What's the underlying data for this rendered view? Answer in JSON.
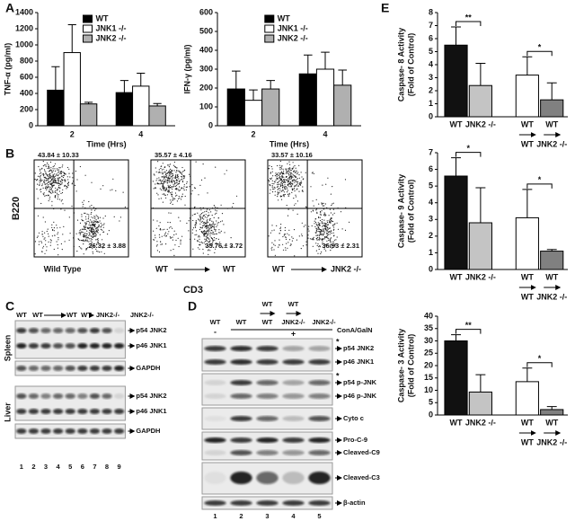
{
  "chart_data": [
    {
      "type": "bar",
      "ylabel": "TNF-α (pg/ml)",
      "xlabel": "Time (Hrs)",
      "categories": [
        "2",
        "4"
      ],
      "series": [
        {
          "name": "WT",
          "color": "#000000",
          "values": [
            440,
            410
          ],
          "errors": [
            290,
            150
          ]
        },
        {
          "name": "JNK1 -/-",
          "color": "#ffffff",
          "values": [
            905,
            490
          ],
          "errors": [
            345,
            160
          ]
        },
        {
          "name": "JNK2 -/-",
          "color": "#b0b0b0",
          "values": [
            270,
            245
          ],
          "errors": [
            20,
            30
          ]
        }
      ],
      "ylim": [
        0,
        1400
      ],
      "yticks": [
        0,
        200,
        400,
        600,
        800,
        1000,
        1200,
        1400
      ],
      "legend": "top-center"
    },
    {
      "type": "bar",
      "ylabel": "IFN-γ (pg/ml)",
      "xlabel": "Time (Hrs)",
      "categories": [
        "2",
        "4"
      ],
      "series": [
        {
          "name": "WT",
          "color": "#000000",
          "values": [
            195,
            275
          ],
          "errors": [
            95,
            100
          ]
        },
        {
          "name": "JNK1 -/-",
          "color": "#ffffff",
          "values": [
            135,
            300
          ],
          "errors": [
            55,
            90
          ]
        },
        {
          "name": "JNK2 -/-",
          "color": "#b0b0b0",
          "values": [
            195,
            215
          ],
          "errors": [
            45,
            80
          ]
        }
      ],
      "ylim": [
        0,
        600
      ],
      "yticks": [
        0,
        100,
        200,
        300,
        400,
        500,
        600
      ],
      "legend": "top-center"
    },
    {
      "type": "bar",
      "ylabel": [
        "Caspase- 8 Activity",
        "(Fold of Control)"
      ],
      "categories": [
        [
          "WT"
        ],
        [
          "JNK2 -/-"
        ],
        [
          "WT",
          "WT"
        ],
        [
          "WT",
          "JNK2 -/-"
        ]
      ],
      "values": [
        5.5,
        2.4,
        3.2,
        1.3
      ],
      "errors": [
        1.4,
        1.7,
        1.4,
        1.3
      ],
      "colors": [
        "#111111",
        "#c4c4c4",
        "#ffffff",
        "#808080"
      ],
      "ylim": [
        0,
        8
      ],
      "yticks": [
        0,
        1,
        2,
        3,
        4,
        5,
        6,
        7,
        8
      ],
      "significance": [
        "**",
        "*"
      ]
    },
    {
      "type": "bar",
      "ylabel": [
        "Caspase- 9 Activity",
        "(Fold of Control)"
      ],
      "categories": [
        [
          "WT"
        ],
        [
          "JNK2 -/-"
        ],
        [
          "WT",
          "WT"
        ],
        [
          "WT",
          "JNK2 -/-"
        ]
      ],
      "values": [
        5.6,
        2.8,
        3.1,
        1.1
      ],
      "errors": [
        1.1,
        2.1,
        1.7,
        0.1
      ],
      "colors": [
        "#111111",
        "#c4c4c4",
        "#ffffff",
        "#808080"
      ],
      "ylim": [
        0,
        7
      ],
      "yticks": [
        0,
        1,
        2,
        3,
        4,
        5,
        6,
        7
      ],
      "significance": [
        "*",
        "*"
      ]
    },
    {
      "type": "bar",
      "ylabel": [
        "Caspase- 3 Activity",
        "(Fold of Control)"
      ],
      "categories": [
        [
          "WT"
        ],
        [
          "JNK2 -/-"
        ],
        [
          "WT",
          "WT"
        ],
        [
          "WT",
          "JNK2 -/-"
        ]
      ],
      "values": [
        30,
        9.3,
        13.5,
        2.2
      ],
      "errors": [
        2.5,
        7,
        5.5,
        1.2
      ],
      "colors": [
        "#111111",
        "#c4c4c4",
        "#ffffff",
        "#808080"
      ],
      "ylim": [
        0,
        40
      ],
      "yticks": [
        0,
        5,
        10,
        15,
        20,
        25,
        30,
        35,
        40
      ],
      "significance": [
        "**",
        "*"
      ]
    }
  ],
  "panel_labels": [
    "A",
    "B",
    "C",
    "D",
    "E"
  ],
  "flow": {
    "xlabel": "CD3",
    "ylabel": "B220",
    "plots": [
      {
        "upper_left": "43.84 ± 10.33",
        "lower_right": "26.32 ± 3.88",
        "caption": [
          "Wild Type"
        ]
      },
      {
        "upper_left": "35.57 ± 4.16",
        "lower_right": "35.76 ± 3.72",
        "caption": [
          "WT",
          "WT"
        ]
      },
      {
        "upper_left": "33.57 ± 10.16",
        "lower_right": "36.93 ± 2.31",
        "caption": [
          "WT",
          "JNK2 -/-"
        ]
      }
    ]
  },
  "blot_c": {
    "headers": [
      [
        "WT"
      ],
      [
        "WT",
        "WT"
      ],
      [
        "WT",
        "JNK2-/-"
      ],
      [
        "JNK2-/-"
      ]
    ],
    "tissues": [
      "Spleen",
      "Liver"
    ],
    "bands": [
      [
        "p54 JNK2",
        "p46 JNK1",
        "GAPDH"
      ],
      [
        "p54 JNK2",
        "p46 JNK1",
        "GAPDH"
      ]
    ],
    "lanes": [
      1,
      2,
      3,
      4,
      5,
      6,
      7,
      8,
      9
    ]
  },
  "blot_d": {
    "headers": [
      [
        "WT"
      ],
      [
        "WT"
      ],
      [
        "WT",
        "WT"
      ],
      [
        "WT",
        "JNK2-/-"
      ],
      [
        "JNK2-/-"
      ]
    ],
    "control_sign": "-",
    "treated_sign": "+",
    "treatment": "ConA/GalN",
    "marker": "*",
    "strips": [
      [
        "p54 JNK2",
        "p46 JNK1"
      ],
      [
        "p54 p-JNK",
        "p46 p-JNK"
      ],
      [
        "Cyto c"
      ],
      [
        "Pro-C-9",
        "Cleaved-C9"
      ],
      [
        "Cleaved-C3"
      ],
      [
        "β-actin"
      ]
    ],
    "lanes": [
      1,
      2,
      3,
      4,
      5
    ]
  }
}
